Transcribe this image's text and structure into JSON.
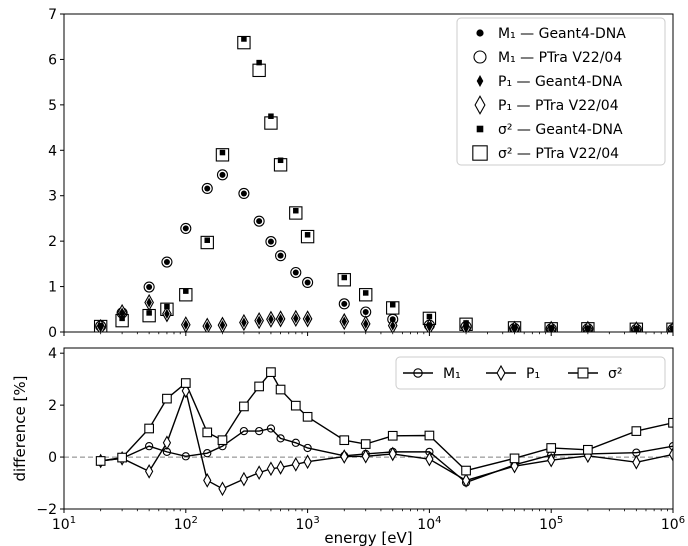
{
  "chart_data": [
    {
      "type": "scatter",
      "x_scale": "log",
      "xlim": [
        10,
        1000000
      ],
      "ylim": [
        0,
        7
      ],
      "x_ticks": [
        10,
        100,
        1000,
        10000,
        100000,
        1000000
      ],
      "y_ticks": [
        0,
        1,
        2,
        3,
        4,
        5,
        6,
        7
      ],
      "y_tick_labels": [
        "0",
        "1",
        "2",
        "3",
        "4",
        "5",
        "6",
        "7"
      ],
      "legend_position": "top-right",
      "series": [
        {
          "name": "M₁ — Geant4-DNA",
          "marker": "dot",
          "color": "#000000",
          "x": [
            20,
            30,
            50,
            70,
            100,
            150,
            200,
            300,
            400,
            500,
            600,
            800,
            1000,
            2000,
            3000,
            5000,
            10000,
            20000,
            50000,
            100000,
            200000,
            500000,
            1000000
          ],
          "y": [
            0.13,
            0.42,
            0.99,
            1.54,
            2.28,
            3.16,
            3.46,
            3.05,
            2.44,
            1.99,
            1.68,
            1.31,
            1.09,
            0.62,
            0.44,
            0.28,
            0.15,
            0.12,
            0.08,
            0.07,
            0.07,
            0.06,
            0.06
          ]
        },
        {
          "name": "M₁ — PTra V22/04",
          "marker": "open-circle",
          "color": "#000000",
          "x": [
            20,
            30,
            50,
            70,
            100,
            150,
            200,
            300,
            400,
            500,
            600,
            800,
            1000,
            2000,
            3000,
            5000,
            10000,
            20000,
            50000,
            100000,
            200000,
            500000,
            1000000
          ],
          "y": [
            0.13,
            0.42,
            0.99,
            1.54,
            2.28,
            3.16,
            3.46,
            3.05,
            2.44,
            1.99,
            1.68,
            1.31,
            1.09,
            0.62,
            0.44,
            0.28,
            0.15,
            0.12,
            0.08,
            0.07,
            0.07,
            0.06,
            0.06
          ]
        },
        {
          "name": "P₁ — Geant4-DNA",
          "marker": "thin-diamond",
          "color": "#000000",
          "x": [
            20,
            30,
            50,
            70,
            100,
            150,
            200,
            300,
            400,
            500,
            600,
            800,
            1000,
            2000,
            3000,
            5000,
            10000,
            20000,
            50000,
            100000,
            200000,
            500000,
            1000000
          ],
          "y": [
            0.1,
            0.43,
            0.65,
            0.4,
            0.16,
            0.13,
            0.15,
            0.21,
            0.25,
            0.28,
            0.29,
            0.3,
            0.29,
            0.23,
            0.18,
            0.14,
            0.11,
            0.08,
            0.06,
            0.06,
            0.06,
            0.05,
            0.05
          ]
        },
        {
          "name": "P₁ — PTra V22/04",
          "marker": "open-thin-diamond",
          "color": "#000000",
          "x": [
            20,
            30,
            50,
            70,
            100,
            150,
            200,
            300,
            400,
            500,
            600,
            800,
            1000,
            2000,
            3000,
            5000,
            10000,
            20000,
            50000,
            100000,
            200000,
            500000,
            1000000
          ],
          "y": [
            0.1,
            0.43,
            0.65,
            0.4,
            0.16,
            0.13,
            0.15,
            0.21,
            0.25,
            0.28,
            0.29,
            0.3,
            0.29,
            0.23,
            0.18,
            0.14,
            0.11,
            0.08,
            0.06,
            0.06,
            0.06,
            0.05,
            0.05
          ]
        },
        {
          "name": "σ² — Geant4-DNA",
          "marker": "square",
          "color": "#000000",
          "x": [
            20,
            30,
            50,
            70,
            100,
            150,
            200,
            300,
            400,
            500,
            600,
            800,
            1000,
            2000,
            3000,
            5000,
            10000,
            20000,
            50000,
            100000,
            200000,
            500000,
            1000000
          ],
          "y": [
            0.14,
            0.3,
            0.42,
            0.56,
            0.9,
            2.02,
            3.95,
            6.45,
            5.93,
            4.75,
            3.78,
            2.67,
            2.14,
            1.2,
            0.86,
            0.6,
            0.34,
            0.2,
            0.11,
            0.09,
            0.08,
            0.07,
            0.07
          ]
        },
        {
          "name": "σ² — PTra V22/04",
          "marker": "open-square",
          "color": "#000000",
          "x": [
            20,
            30,
            50,
            70,
            100,
            150,
            200,
            300,
            400,
            500,
            600,
            800,
            1000,
            2000,
            3000,
            5000,
            10000,
            20000,
            50000,
            100000,
            200000,
            500000,
            1000000
          ],
          "y": [
            0.12,
            0.25,
            0.36,
            0.5,
            0.82,
            1.97,
            3.9,
            6.37,
            5.76,
            4.6,
            3.68,
            2.62,
            2.1,
            1.15,
            0.82,
            0.53,
            0.3,
            0.17,
            0.09,
            0.07,
            0.07,
            0.06,
            0.06
          ]
        }
      ]
    },
    {
      "type": "line",
      "x_scale": "log",
      "xlim": [
        10,
        1000000
      ],
      "ylim": [
        -2,
        4.2
      ],
      "xlabel": "energy [eV]",
      "ylabel": "difference [%]",
      "x_ticks": [
        10,
        100,
        1000,
        10000,
        100000,
        1000000
      ],
      "y_ticks": [
        -2,
        0,
        2,
        4
      ],
      "y_tick_labels": [
        "−2",
        "0",
        "2",
        "4"
      ],
      "reference_line": 0,
      "legend_position": "top-right",
      "series": [
        {
          "name": "M₁",
          "marker": "open-circle",
          "color": "#000000",
          "x": [
            20,
            30,
            50,
            70,
            100,
            150,
            200,
            300,
            400,
            500,
            600,
            800,
            1000,
            2000,
            3000,
            5000,
            10000,
            20000,
            50000,
            100000,
            200000,
            500000,
            1000000
          ],
          "y": [
            -0.15,
            -0.05,
            0.42,
            0.2,
            0.03,
            0.15,
            0.42,
            1.0,
            1.0,
            1.1,
            0.72,
            0.55,
            0.35,
            0.05,
            0.12,
            0.2,
            0.2,
            -0.98,
            -0.3,
            0.08,
            0.12,
            0.17,
            0.42
          ]
        },
        {
          "name": "P₁",
          "marker": "open-thin-diamond",
          "color": "#000000",
          "x": [
            20,
            30,
            50,
            70,
            100,
            150,
            200,
            300,
            400,
            500,
            600,
            800,
            1000,
            2000,
            3000,
            5000,
            10000,
            20000,
            50000,
            100000,
            200000,
            500000,
            1000000
          ],
          "y": [
            -0.15,
            -0.05,
            -0.55,
            0.55,
            2.55,
            -0.9,
            -1.22,
            -0.85,
            -0.6,
            -0.45,
            -0.4,
            -0.28,
            -0.18,
            0.02,
            0.03,
            0.12,
            -0.08,
            -0.9,
            -0.35,
            -0.12,
            0.05,
            -0.2,
            0.1
          ]
        },
        {
          "name": "σ²",
          "marker": "open-square",
          "color": "#000000",
          "x": [
            20,
            30,
            50,
            70,
            100,
            150,
            200,
            300,
            400,
            500,
            600,
            800,
            1000,
            2000,
            3000,
            5000,
            10000,
            20000,
            50000,
            100000,
            200000,
            500000,
            1000000
          ],
          "y": [
            -0.15,
            -0.02,
            1.1,
            2.25,
            2.85,
            0.95,
            0.65,
            1.95,
            2.72,
            3.27,
            2.6,
            1.98,
            1.55,
            0.65,
            0.5,
            0.82,
            0.83,
            -0.52,
            -0.05,
            0.35,
            0.28,
            1.0,
            1.32
          ]
        }
      ]
    }
  ]
}
